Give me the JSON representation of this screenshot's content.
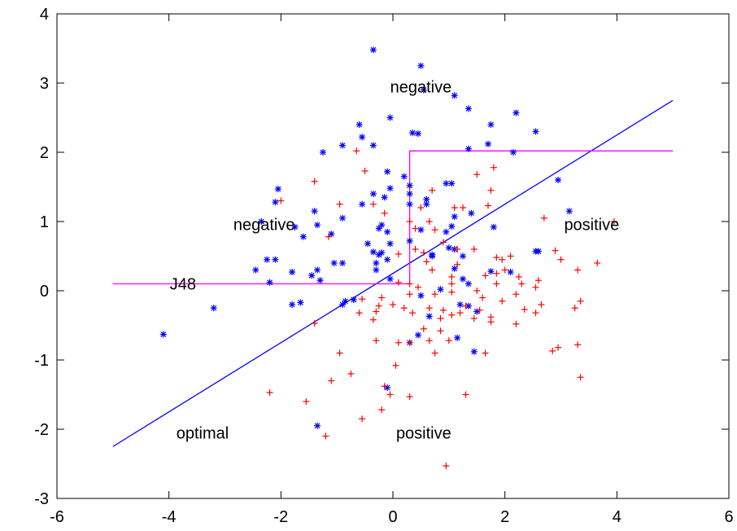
{
  "chart_data": {
    "type": "scatter",
    "title": "",
    "xlabel": "",
    "ylabel": "",
    "xlim": [
      -6,
      6
    ],
    "ylim": [
      -3,
      4
    ],
    "x_ticks": [
      -6,
      -4,
      -2,
      0,
      2,
      4,
      6
    ],
    "y_ticks": [
      -3,
      -2,
      -1,
      0,
      1,
      2,
      3,
      4
    ],
    "grid": false,
    "colors": {
      "negative_points": "#0000ff",
      "positive_points": "#ff0000",
      "optimal_line": "#0000ff",
      "j48_boundary": "#ff00ff"
    },
    "series": [
      {
        "marker": "asterisk",
        "color": "#0000ff",
        "points": [
          [
            -0.35,
            3.48
          ],
          [
            0.5,
            3.25
          ],
          [
            0.55,
            2.9
          ],
          [
            1.1,
            2.82
          ],
          [
            -0.05,
            2.5
          ],
          [
            1.35,
            2.63
          ],
          [
            2.2,
            2.57
          ],
          [
            -0.6,
            2.4
          ],
          [
            -0.55,
            2.22
          ],
          [
            0.35,
            2.28
          ],
          [
            0.45,
            2.27
          ],
          [
            1.75,
            2.4
          ],
          [
            2.55,
            2.3
          ],
          [
            -0.35,
            2.1
          ],
          [
            -1.25,
            2.0
          ],
          [
            -0.9,
            2.1
          ],
          [
            1.35,
            2.05
          ],
          [
            1.7,
            2.12
          ],
          [
            2.15,
            2.0
          ],
          [
            0.2,
            1.65
          ],
          [
            -0.1,
            1.72
          ],
          [
            0.3,
            1.52
          ],
          [
            0.95,
            1.55
          ],
          [
            1.05,
            1.55
          ],
          [
            2.95,
            1.6
          ],
          [
            -2.05,
            1.47
          ],
          [
            -0.05,
            1.48
          ],
          [
            0.3,
            1.4
          ],
          [
            -0.35,
            1.4
          ],
          [
            -0.15,
            1.35
          ],
          [
            0.6,
            1.32
          ],
          [
            0.3,
            1.25
          ],
          [
            -2.1,
            1.28
          ],
          [
            -0.55,
            1.25
          ],
          [
            -1.4,
            1.15
          ],
          [
            0.6,
            1.25
          ],
          [
            1.4,
            1.12
          ],
          [
            3.15,
            1.15
          ],
          [
            -0.9,
            1.05
          ],
          [
            1.1,
            1.07
          ],
          [
            -2.35,
            1.0
          ],
          [
            -1.75,
            0.92
          ],
          [
            -1.35,
            0.95
          ],
          [
            0.5,
            0.88
          ],
          [
            1.05,
            0.93
          ],
          [
            -0.2,
            0.95
          ],
          [
            -0.25,
            0.9
          ],
          [
            -0.1,
            0.85
          ],
          [
            1.8,
            0.92
          ],
          [
            -1.1,
            0.82
          ],
          [
            -1.6,
            0.78
          ],
          [
            0.3,
            0.72
          ],
          [
            0.95,
            0.85
          ],
          [
            -0.45,
            0.68
          ],
          [
            -0.05,
            0.68
          ],
          [
            1.1,
            0.6
          ],
          [
            1.0,
            0.62
          ],
          [
            -0.35,
            0.56
          ],
          [
            -0.25,
            0.52
          ],
          [
            -0.2,
            0.55
          ],
          [
            0.7,
            0.52
          ],
          [
            0.7,
            0.5
          ],
          [
            1.25,
            0.5
          ],
          [
            2.55,
            0.57
          ],
          [
            2.6,
            0.57
          ],
          [
            -2.1,
            0.45
          ],
          [
            -2.25,
            0.45
          ],
          [
            -0.1,
            0.45
          ],
          [
            -1.05,
            0.4
          ],
          [
            -0.9,
            0.4
          ],
          [
            -0.3,
            0.4
          ],
          [
            -2.45,
            0.3
          ],
          [
            -1.8,
            0.27
          ],
          [
            -1.35,
            0.3
          ],
          [
            -1.45,
            0.22
          ],
          [
            -0.3,
            0.3
          ],
          [
            1.1,
            0.32
          ],
          [
            1.75,
            0.28
          ],
          [
            2.1,
            0.27
          ],
          [
            -2.2,
            0.12
          ],
          [
            -1.3,
            0.15
          ],
          [
            -0.05,
            0.17
          ],
          [
            1.25,
            0.17
          ],
          [
            1.35,
            0.1
          ],
          [
            0.85,
            0.02
          ],
          [
            -0.85,
            -0.15
          ],
          [
            -0.7,
            -0.13
          ],
          [
            0.5,
            -0.07
          ],
          [
            1.35,
            -0.22
          ],
          [
            -1.8,
            -0.2
          ],
          [
            -1.65,
            -0.17
          ],
          [
            -3.2,
            -0.25
          ],
          [
            -0.9,
            -0.2
          ],
          [
            0.65,
            -0.37
          ],
          [
            1.2,
            -0.2
          ],
          [
            1.5,
            -0.3
          ],
          [
            -4.1,
            -0.63
          ],
          [
            0.45,
            -0.64
          ],
          [
            0.3,
            -0.75
          ],
          [
            1.15,
            -0.68
          ],
          [
            1.45,
            -0.88
          ],
          [
            -0.1,
            -1.4
          ],
          [
            -1.35,
            -1.95
          ]
        ]
      },
      {
        "marker": "plus",
        "color": "#ff0000",
        "points": [
          [
            -0.65,
            2.02
          ],
          [
            -0.5,
            1.73
          ],
          [
            1.8,
            1.78
          ],
          [
            -1.4,
            1.58
          ],
          [
            1.5,
            1.68
          ],
          [
            1.75,
            1.45
          ],
          [
            0.7,
            1.45
          ],
          [
            -2.0,
            1.3
          ],
          [
            -0.95,
            1.25
          ],
          [
            0.5,
            1.2
          ],
          [
            1.1,
            1.2
          ],
          [
            1.25,
            1.2
          ],
          [
            1.7,
            1.23
          ],
          [
            -0.35,
            1.25
          ],
          [
            -0.15,
            1.12
          ],
          [
            0.3,
            1.0
          ],
          [
            0.65,
            1.0
          ],
          [
            2.7,
            1.05
          ],
          [
            0.4,
            0.9
          ],
          [
            0.75,
            0.88
          ],
          [
            -1.15,
            0.78
          ],
          [
            0.9,
            0.7
          ],
          [
            0.4,
            0.6
          ],
          [
            0.1,
            0.53
          ],
          [
            0.55,
            0.55
          ],
          [
            0.6,
            0.42
          ],
          [
            1.15,
            0.6
          ],
          [
            1.45,
            0.6
          ],
          [
            2.1,
            0.5
          ],
          [
            2.9,
            0.58
          ],
          [
            3.0,
            0.45
          ],
          [
            3.65,
            0.4
          ],
          [
            1.85,
            0.48
          ],
          [
            1.95,
            0.45
          ],
          [
            3.3,
            0.3
          ],
          [
            0.7,
            0.3
          ],
          [
            1.85,
            0.25
          ],
          [
            1.05,
            0.2
          ],
          [
            1.15,
            0.38
          ],
          [
            2.0,
            0.3
          ],
          [
            0.1,
            0.12
          ],
          [
            0.3,
            0.1
          ],
          [
            1.65,
            0.22
          ],
          [
            2.25,
            0.2
          ],
          [
            2.6,
            0.15
          ],
          [
            0.45,
            0.05
          ],
          [
            1.05,
            0.1
          ],
          [
            1.85,
            0.1
          ],
          [
            2.3,
            0.1
          ],
          [
            0.3,
            -0.05
          ],
          [
            0.75,
            -0.05
          ],
          [
            1.05,
            -0.02
          ],
          [
            1.5,
            0.0
          ],
          [
            1.6,
            -0.1
          ],
          [
            2.2,
            -0.05
          ],
          [
            2.55,
            0.05
          ],
          [
            -0.2,
            -0.1
          ],
          [
            -0.55,
            -0.12
          ],
          [
            0.0,
            -0.2
          ],
          [
            0.2,
            -0.25
          ],
          [
            1.3,
            -0.22
          ],
          [
            1.55,
            -0.28
          ],
          [
            1.95,
            -0.15
          ],
          [
            2.35,
            -0.27
          ],
          [
            2.65,
            -0.2
          ],
          [
            3.35,
            -0.15
          ],
          [
            -0.25,
            -0.22
          ],
          [
            -0.6,
            -0.32
          ],
          [
            -0.3,
            -0.3
          ],
          [
            0.35,
            -0.32
          ],
          [
            0.65,
            -0.25
          ],
          [
            0.9,
            -0.28
          ],
          [
            1.2,
            -0.32
          ],
          [
            1.75,
            -0.38
          ],
          [
            2.55,
            -0.32
          ],
          [
            3.25,
            -0.25
          ],
          [
            -0.35,
            -0.42
          ],
          [
            0.85,
            -0.4
          ],
          [
            1.05,
            -0.35
          ],
          [
            1.45,
            -0.4
          ],
          [
            1.75,
            -0.45
          ],
          [
            2.2,
            -0.48
          ],
          [
            -1.4,
            -0.47
          ],
          [
            0.55,
            -0.55
          ],
          [
            0.85,
            -0.58
          ],
          [
            -0.3,
            -0.72
          ],
          [
            0.1,
            -0.75
          ],
          [
            0.3,
            -0.75
          ],
          [
            0.65,
            -0.72
          ],
          [
            1.0,
            -0.72
          ],
          [
            3.3,
            -0.78
          ],
          [
            -0.95,
            -0.9
          ],
          [
            0.75,
            -0.9
          ],
          [
            1.65,
            -0.9
          ],
          [
            2.85,
            -0.87
          ],
          [
            2.95,
            -0.82
          ],
          [
            0.05,
            -1.08
          ],
          [
            -0.75,
            -1.2
          ],
          [
            3.35,
            -1.25
          ],
          [
            -1.1,
            -1.3
          ],
          [
            -0.15,
            -1.38
          ],
          [
            -0.05,
            -1.5
          ],
          [
            -2.2,
            -1.47
          ],
          [
            0.3,
            -1.53
          ],
          [
            1.3,
            -1.5
          ],
          [
            -1.55,
            -1.6
          ],
          [
            -0.2,
            -1.72
          ],
          [
            -0.55,
            -1.85
          ],
          [
            -1.2,
            -2.1
          ],
          [
            0.95,
            -2.53
          ],
          [
            3.95,
            1.0
          ]
        ]
      }
    ],
    "lines": [
      {
        "label": "optimal",
        "color": "#0000ff",
        "points": [
          [
            -5,
            -2.25
          ],
          [
            5,
            2.75
          ]
        ]
      },
      {
        "label": "J48",
        "color": "#ff00ff",
        "points": [
          [
            -5,
            0.1
          ],
          [
            0.3,
            0.1
          ],
          [
            0.3,
            2.02
          ],
          [
            5,
            2.02
          ]
        ]
      }
    ],
    "annotations": [
      {
        "text": "negative",
        "x": 0.5,
        "y": 2.95,
        "anchor": "middle"
      },
      {
        "text": "negative",
        "x": -2.3,
        "y": 0.96,
        "anchor": "middle"
      },
      {
        "text": "positive",
        "x": 3.55,
        "y": 0.96,
        "anchor": "middle"
      },
      {
        "text": "J48",
        "x": -3.75,
        "y": 0.1,
        "anchor": "middle"
      },
      {
        "text": "optimal",
        "x": -3.4,
        "y": -2.05,
        "anchor": "middle"
      },
      {
        "text": "positive",
        "x": 0.55,
        "y": -2.05,
        "anchor": "middle"
      }
    ]
  }
}
